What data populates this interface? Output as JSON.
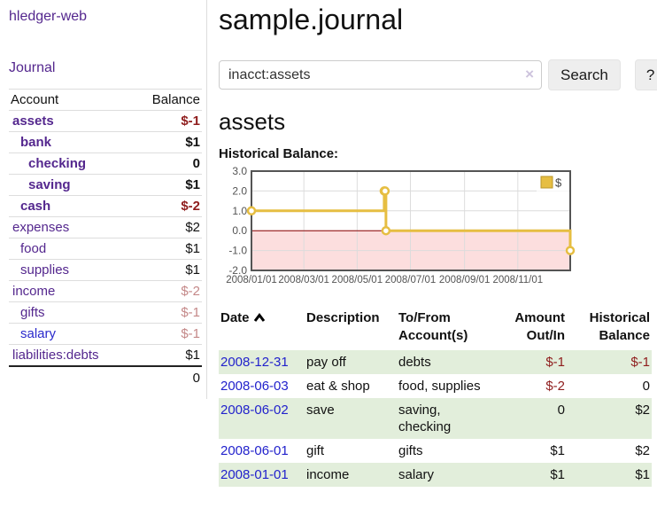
{
  "app": {
    "brand": "hledger-web",
    "nav_journal": "Journal"
  },
  "colors": {
    "link_purple": "#54278e",
    "link_blue": "#2222cc",
    "negative_strong": "#8f1d1d",
    "negative_soft": "#c48888",
    "row_stripe_green": "#e2eedb",
    "chart_line_yellow": "#e6be42",
    "chart_negative_fill": "#fcdede",
    "chart_zero_line": "#8b0000",
    "chart_border": "#545454"
  },
  "sidebar": {
    "headers": {
      "account": "Account",
      "balance": "Balance"
    },
    "accounts": [
      {
        "name": "assets",
        "level": 0,
        "bold": true,
        "balance": "$-1",
        "balance_style": "neg-strong"
      },
      {
        "name": "bank",
        "level": 1,
        "bold": true,
        "balance": "$1",
        "balance_style": "pos"
      },
      {
        "name": "checking",
        "level": 2,
        "bold": true,
        "balance": "0",
        "balance_style": "pos"
      },
      {
        "name": "saving",
        "level": 2,
        "bold": true,
        "balance": "$1",
        "balance_style": "pos"
      },
      {
        "name": "cash",
        "level": 1,
        "bold": true,
        "balance": "$-2",
        "balance_style": "neg-strong"
      },
      {
        "name": "expenses",
        "level": 0,
        "bold": false,
        "balance": "$2",
        "balance_style": "pos"
      },
      {
        "name": "food",
        "level": 1,
        "bold": false,
        "balance": "$1",
        "balance_style": "pos"
      },
      {
        "name": "supplies",
        "level": 1,
        "bold": false,
        "balance": "$1",
        "balance_style": "pos"
      },
      {
        "name": "income",
        "level": 0,
        "bold": false,
        "balance": "$-2",
        "balance_style": "neg-soft"
      },
      {
        "name": "gifts",
        "level": 1,
        "bold": false,
        "balance": "$-1",
        "balance_style": "neg-soft"
      },
      {
        "name": "salary",
        "level": 1,
        "bold": false,
        "balance": "$-1",
        "balance_style": "neg-soft",
        "link_style": "unvisited"
      },
      {
        "name": "liabilities:debts",
        "level": 0,
        "bold": false,
        "balance": "$1",
        "balance_style": "pos"
      }
    ],
    "total": "0"
  },
  "header": {
    "title": "sample.journal"
  },
  "search": {
    "value": "inacct:assets",
    "clear_icon": "×",
    "button_label": "Search",
    "help_label": "?"
  },
  "account_page": {
    "heading": "assets",
    "chart_title": "Historical Balance:"
  },
  "chart_data": {
    "type": "line",
    "title": "Historical Balance",
    "steps": true,
    "series": [
      {
        "name": "$",
        "color": "#e6be42",
        "points": [
          [
            "2008-01-01",
            1
          ],
          [
            "2008-06-01",
            2
          ],
          [
            "2008-06-02",
            2
          ],
          [
            "2008-06-03",
            0
          ],
          [
            "2008-12-31",
            -1
          ]
        ]
      }
    ],
    "x_range": [
      "2008-01-01",
      "2008-12-31"
    ],
    "y_range": [
      -2,
      3
    ],
    "x_ticks": [
      "2008/01/01",
      "2008/03/01",
      "2008/05/01",
      "2008/07/01",
      "2008/09/01",
      "2008/11/01"
    ],
    "y_ticks": [
      3.0,
      2.0,
      1.0,
      0.0,
      -1.0,
      -2.0
    ],
    "grid": true,
    "negative_region": {
      "from": 0,
      "fill": "#fcdede",
      "line_color": "#8b0000"
    },
    "legend": {
      "position": "top-right",
      "label": "$"
    }
  },
  "register": {
    "headers": {
      "date": "Date",
      "description": "Description",
      "account": "To/From Account(s)",
      "amount": "Amount Out/In",
      "balance": "Historical Balance"
    },
    "rows": [
      {
        "date": "2008-12-31",
        "description": "pay off",
        "accounts": "debts",
        "amount": "$-1",
        "amount_neg": true,
        "balance": "$-1",
        "balance_neg": true
      },
      {
        "date": "2008-06-03",
        "description": "eat & shop",
        "accounts": "food, supplies",
        "amount": "$-2",
        "amount_neg": true,
        "balance": "0",
        "balance_neg": false
      },
      {
        "date": "2008-06-02",
        "description": "save",
        "accounts": "saving, checking",
        "amount": "0",
        "amount_neg": false,
        "balance": "$2",
        "balance_neg": false
      },
      {
        "date": "2008-06-01",
        "description": "gift",
        "accounts": "gifts",
        "amount": "$1",
        "amount_neg": false,
        "balance": "$2",
        "balance_neg": false
      },
      {
        "date": "2008-01-01",
        "description": "income",
        "accounts": "salary",
        "amount": "$1",
        "amount_neg": false,
        "balance": "$1",
        "balance_neg": false
      }
    ]
  }
}
